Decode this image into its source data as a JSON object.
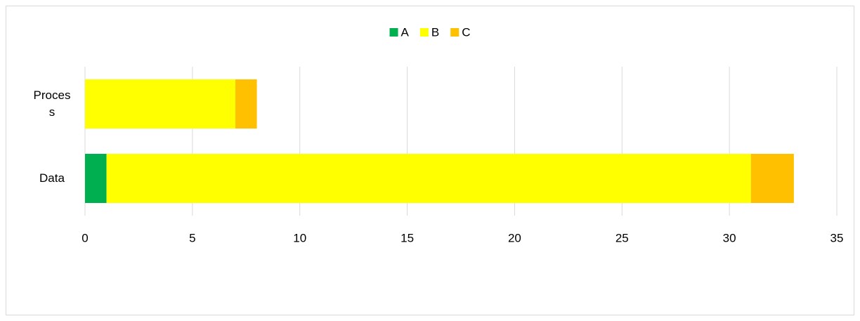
{
  "chart_data": {
    "type": "bar",
    "orientation": "horizontal",
    "stacked": true,
    "categories": [
      "Data",
      "Process"
    ],
    "series": [
      {
        "name": "A",
        "color": "#00b050",
        "values": [
          1,
          0
        ]
      },
      {
        "name": "B",
        "color": "#ffff00",
        "values": [
          30,
          7
        ]
      },
      {
        "name": "C",
        "color": "#ffc000",
        "values": [
          2,
          1
        ]
      }
    ],
    "xlim": [
      0,
      35
    ],
    "xticks": [
      0,
      5,
      10,
      15,
      20,
      25,
      30,
      35
    ],
    "grid": true,
    "legend": "top"
  }
}
